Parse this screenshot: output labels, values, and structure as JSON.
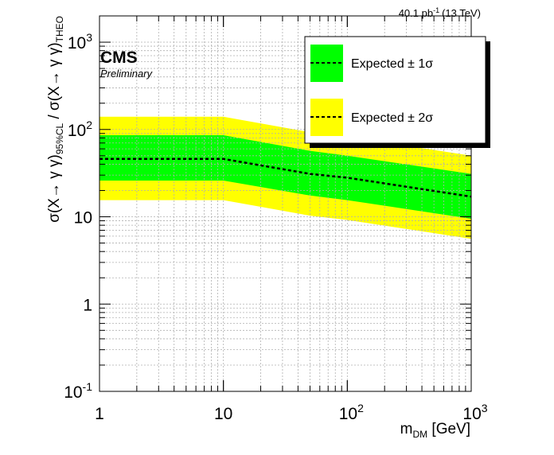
{
  "header": {
    "lumi_value": "40.1 pb",
    "lumi_exp": "-1",
    "energy": "(13 TeV)"
  },
  "cms": {
    "label": "CMS",
    "status": "Preliminary"
  },
  "axes": {
    "x_main": "m",
    "x_sub": "DM",
    "x_unit": " [GeV]",
    "y_main": "σ(X→ γ γ)",
    "y_sub": "95%CL",
    "y_mid": " / σ(X→ γ γ)",
    "y_sub2": "THEO"
  },
  "legend": {
    "entries": [
      {
        "label": "Expected ± 1σ",
        "color": "#00ff00"
      },
      {
        "label": "Expected ± 2σ",
        "color": "#ffff00"
      }
    ]
  },
  "colors": {
    "band_1sigma": "#00ff00",
    "band_2sigma": "#ffff00",
    "grid": "#b0b0b0"
  },
  "chart_data": {
    "type": "area",
    "x_scale": "log",
    "y_scale": "log",
    "xlim": [
      1,
      1000
    ],
    "ylim": [
      0.1,
      2000
    ],
    "grid": true,
    "legend_position": "top-right",
    "x": [
      1,
      10,
      50,
      100,
      1000
    ],
    "series": [
      {
        "name": "Expected",
        "style": "dashed",
        "values": [
          46,
          46,
          31,
          28,
          17
        ]
      },
      {
        "name": "Expected ± 1σ",
        "band_low": [
          26,
          26,
          17.5,
          15.5,
          9.5
        ],
        "band_high": [
          86,
          86,
          57,
          50,
          31
        ]
      },
      {
        "name": "Expected ± 2σ",
        "band_low": [
          15.5,
          15.5,
          10.3,
          9.2,
          5.6
        ],
        "band_high": [
          140,
          140,
          93,
          83,
          50
        ]
      }
    ],
    "x_ticks": [
      {
        "value": 1,
        "base": "1",
        "exp": ""
      },
      {
        "value": 10,
        "base": "10",
        "exp": ""
      },
      {
        "value": 100,
        "base": "10",
        "exp": "2"
      },
      {
        "value": 1000,
        "base": "10",
        "exp": "3"
      }
    ],
    "y_ticks": [
      {
        "value": 0.1,
        "base": "10",
        "exp": "-1"
      },
      {
        "value": 1,
        "base": "1",
        "exp": ""
      },
      {
        "value": 10,
        "base": "10",
        "exp": ""
      },
      {
        "value": 100,
        "base": "10",
        "exp": "2"
      },
      {
        "value": 1000,
        "base": "10",
        "exp": "3"
      }
    ]
  }
}
